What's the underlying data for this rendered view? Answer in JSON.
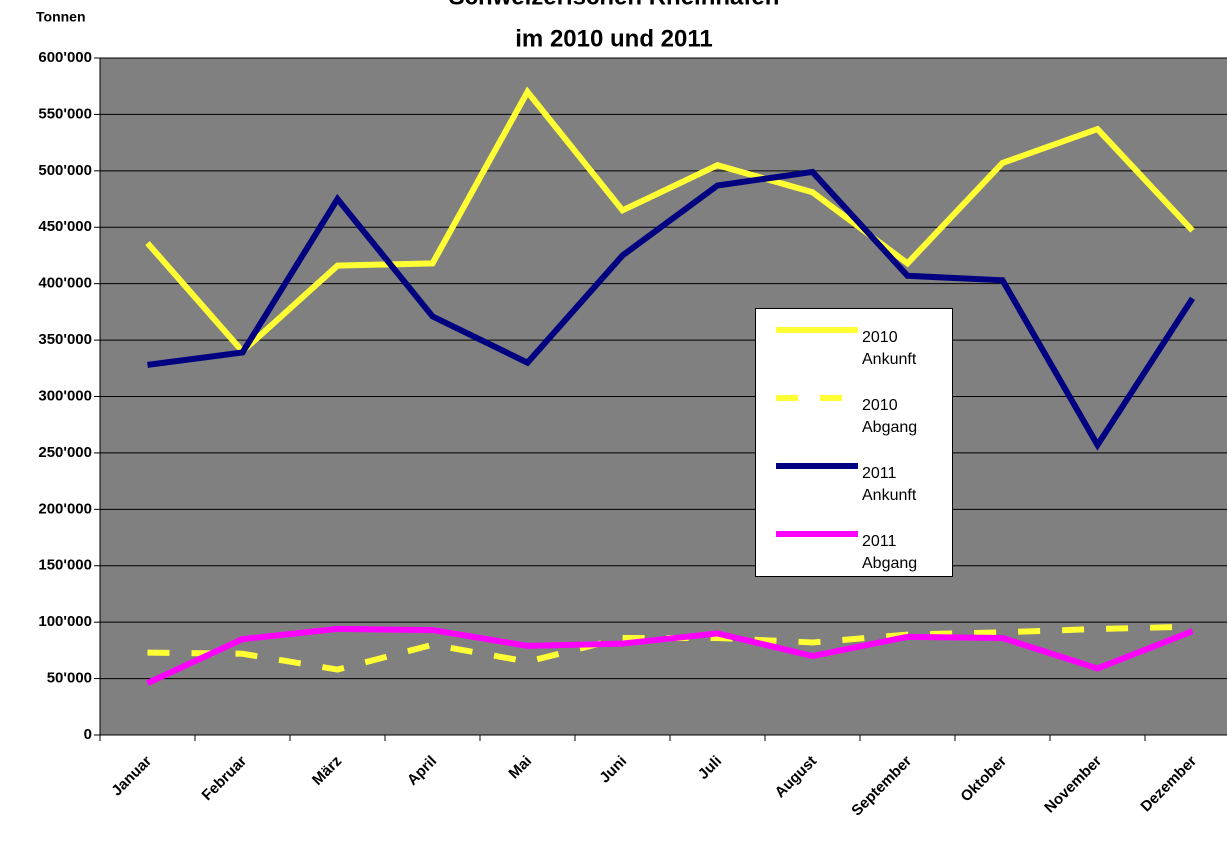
{
  "chart_data": {
    "type": "line",
    "title": [
      "Schweizerischen Rheinhäfen",
      "im 2010 und 2011"
    ],
    "y_label": "Tonnen",
    "categories": [
      "Januar",
      "Februar",
      "März",
      "April",
      "Mai",
      "Juni",
      "Juli",
      "August",
      "September",
      "Oktober",
      "November",
      "Dezember"
    ],
    "series": [
      {
        "name": "2010 Ankunft",
        "color": "#ffff33",
        "dash": false,
        "values": [
          436000,
          340000,
          416000,
          418000,
          570000,
          465000,
          505000,
          481000,
          418000,
          507000,
          537000,
          447000
        ]
      },
      {
        "name": "2010 Abgang",
        "color": "#ffff33",
        "dash": true,
        "values": [
          73000,
          72000,
          58000,
          80000,
          65000,
          86000,
          86000,
          82000,
          89000,
          91000,
          94000,
          96000
        ]
      },
      {
        "name": "2011 Ankunft",
        "color": "#000080",
        "dash": false,
        "values": [
          328000,
          339000,
          475000,
          371000,
          330000,
          425000,
          487000,
          499000,
          407000,
          403000,
          257000,
          387000
        ]
      },
      {
        "name": "2011 Abgang",
        "color": "#ff00ff",
        "dash": false,
        "values": [
          46000,
          85000,
          94000,
          93000,
          79000,
          81000,
          90000,
          70000,
          87000,
          86000,
          59000,
          92000
        ]
      }
    ],
    "ylim": [
      0,
      600000
    ],
    "yticks": [
      0,
      {
        "value": 50000,
        "label": "50'000"
      },
      {
        "value": 100000,
        "label": "100'000"
      },
      {
        "value": 150000,
        "label": "150'000"
      },
      {
        "value": 200000,
        "label": "200'000"
      },
      {
        "value": 250000,
        "label": "250'000"
      },
      {
        "value": 300000,
        "label": "300'000"
      },
      {
        "value": 350000,
        "label": "350'000"
      },
      {
        "value": 400000,
        "label": "400'000"
      },
      {
        "value": 450000,
        "label": "450'000"
      },
      {
        "value": 500000,
        "label": "500'000"
      },
      {
        "value": 550000,
        "label": "550'000"
      },
      {
        "value": 600000,
        "label": "600'000"
      }
    ],
    "grid": true
  }
}
